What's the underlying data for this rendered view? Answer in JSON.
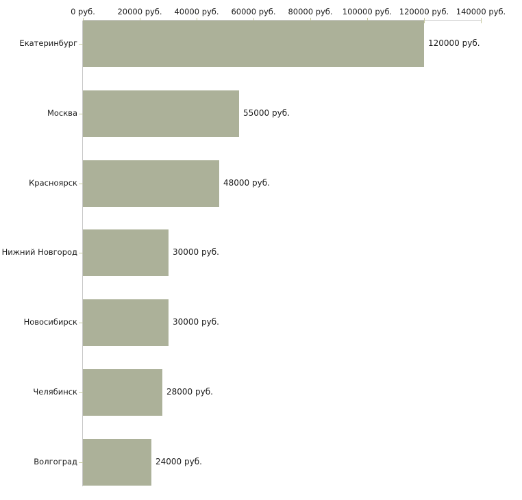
{
  "chart_data": {
    "type": "bar",
    "orientation": "horizontal",
    "title": "",
    "categories": [
      "Екатеринбург",
      "Москва",
      "Красноярск",
      "Нижний Новгород",
      "Новосибирск",
      "Челябинск",
      "Волгоград"
    ],
    "values": [
      120000,
      55000,
      48000,
      30000,
      30000,
      28000,
      24000
    ],
    "value_labels": [
      "120000 руб.",
      "55000 руб.",
      "48000 руб.",
      "30000 руб.",
      "30000 руб.",
      "28000 руб.",
      "24000 руб."
    ],
    "x_axis": {
      "position": "top",
      "range": [
        0,
        140000
      ],
      "ticks": [
        0,
        20000,
        40000,
        60000,
        80000,
        100000,
        120000,
        140000
      ],
      "tick_labels": [
        "0 руб.",
        "20000 руб.",
        "40000 руб.",
        "60000 руб.",
        "80000 руб.",
        "100000 руб.",
        "120000 руб.",
        "140000 руб."
      ],
      "unit": "руб."
    },
    "grid": false,
    "legend": false,
    "colors": {
      "bar": "#acb199",
      "axis_line": "#c9c9c9",
      "tick": "#c6c99e",
      "text": "#1a1a1a",
      "background": "#ffffff"
    }
  }
}
